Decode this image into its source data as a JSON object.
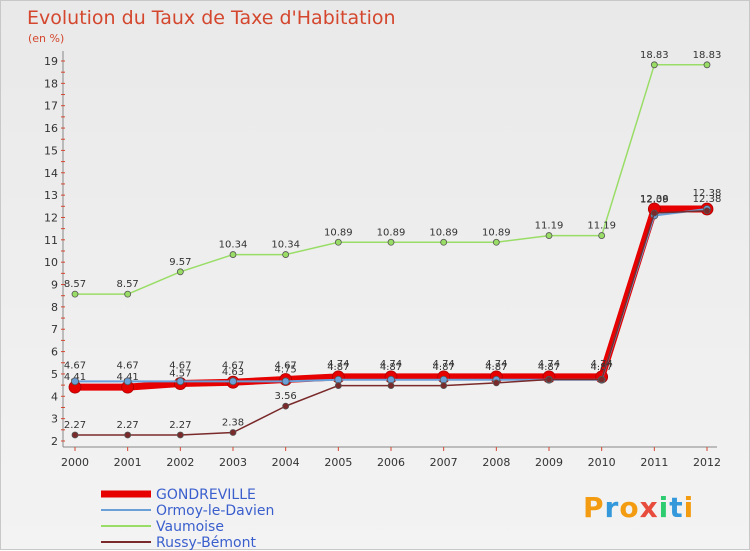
{
  "chart_data": {
    "type": "line",
    "title": "Evolution du Taux de Taxe d'Habitation",
    "subtitle": "(en %)",
    "x": [
      "2000",
      "2001",
      "2002",
      "2003",
      "2004",
      "2005",
      "2006",
      "2007",
      "2008",
      "2009",
      "2010",
      "2011",
      "2012"
    ],
    "ylim": [
      2,
      19
    ],
    "yticks": [
      2,
      3,
      4,
      5,
      6,
      7,
      8,
      9,
      10,
      11,
      12,
      13,
      14,
      15,
      16,
      17,
      18,
      19
    ],
    "grid": false,
    "legend_position": "bottom-left",
    "series": [
      {
        "name": "GONDREVILLE",
        "color": "#e60000",
        "values": [
          4.41,
          4.41,
          4.57,
          4.63,
          4.75,
          4.87,
          4.87,
          4.87,
          4.87,
          4.87,
          4.87,
          12.38,
          12.38
        ],
        "labels": [
          "4.41",
          "4.41",
          "4.57",
          "4.63",
          "4.75",
          "4.87",
          "4.87",
          "4.87",
          "4.87",
          "4.87",
          "4.87",
          "12.38",
          "12.38"
        ]
      },
      {
        "name": "Ormoy-le-Davien",
        "color": "#6a9fd8",
        "values": [
          4.67,
          4.67,
          4.67,
          4.67,
          4.67,
          4.74,
          4.74,
          4.74,
          4.74,
          4.74,
          4.74,
          12.09,
          12.38
        ],
        "labels": [
          "4.67",
          "4.67",
          "4.67",
          "4.67",
          "4.67",
          "4.74",
          "4.74",
          "4.74",
          "4.74",
          "4.74",
          "4.74",
          "12.09",
          "12.38"
        ]
      },
      {
        "name": "Vaumoise",
        "color": "#99dd66",
        "values": [
          8.57,
          8.57,
          9.57,
          10.34,
          10.34,
          10.89,
          10.89,
          10.89,
          10.89,
          11.19,
          11.19,
          18.83,
          18.83
        ],
        "labels": [
          "8.57",
          "8.57",
          "9.57",
          "10.34",
          "10.34",
          "10.89",
          "10.89",
          "10.89",
          "10.89",
          "11.19",
          "11.19",
          "18.83",
          "18.83"
        ]
      },
      {
        "name": "Russy-Bémont",
        "color": "#7a2a2a",
        "values": [
          2.27,
          2.27,
          2.27,
          2.38,
          3.56,
          4.48,
          4.48,
          4.48,
          4.6,
          4.75,
          4.75,
          12.2,
          12.3
        ],
        "labels": [
          "2.27",
          "2.27",
          "2.27",
          "2.38",
          "3.56",
          "",
          "",
          "",
          "",
          "",
          "",
          "",
          ""
        ]
      }
    ],
    "logo": {
      "letters": [
        "P",
        "r",
        "o",
        "x",
        "i",
        "t",
        "i"
      ],
      "colors": [
        "#f39c12",
        "#3498db",
        "#f39c12",
        "#e74c3c",
        "#2ecc71",
        "#3498db",
        "#f39c12"
      ]
    }
  }
}
